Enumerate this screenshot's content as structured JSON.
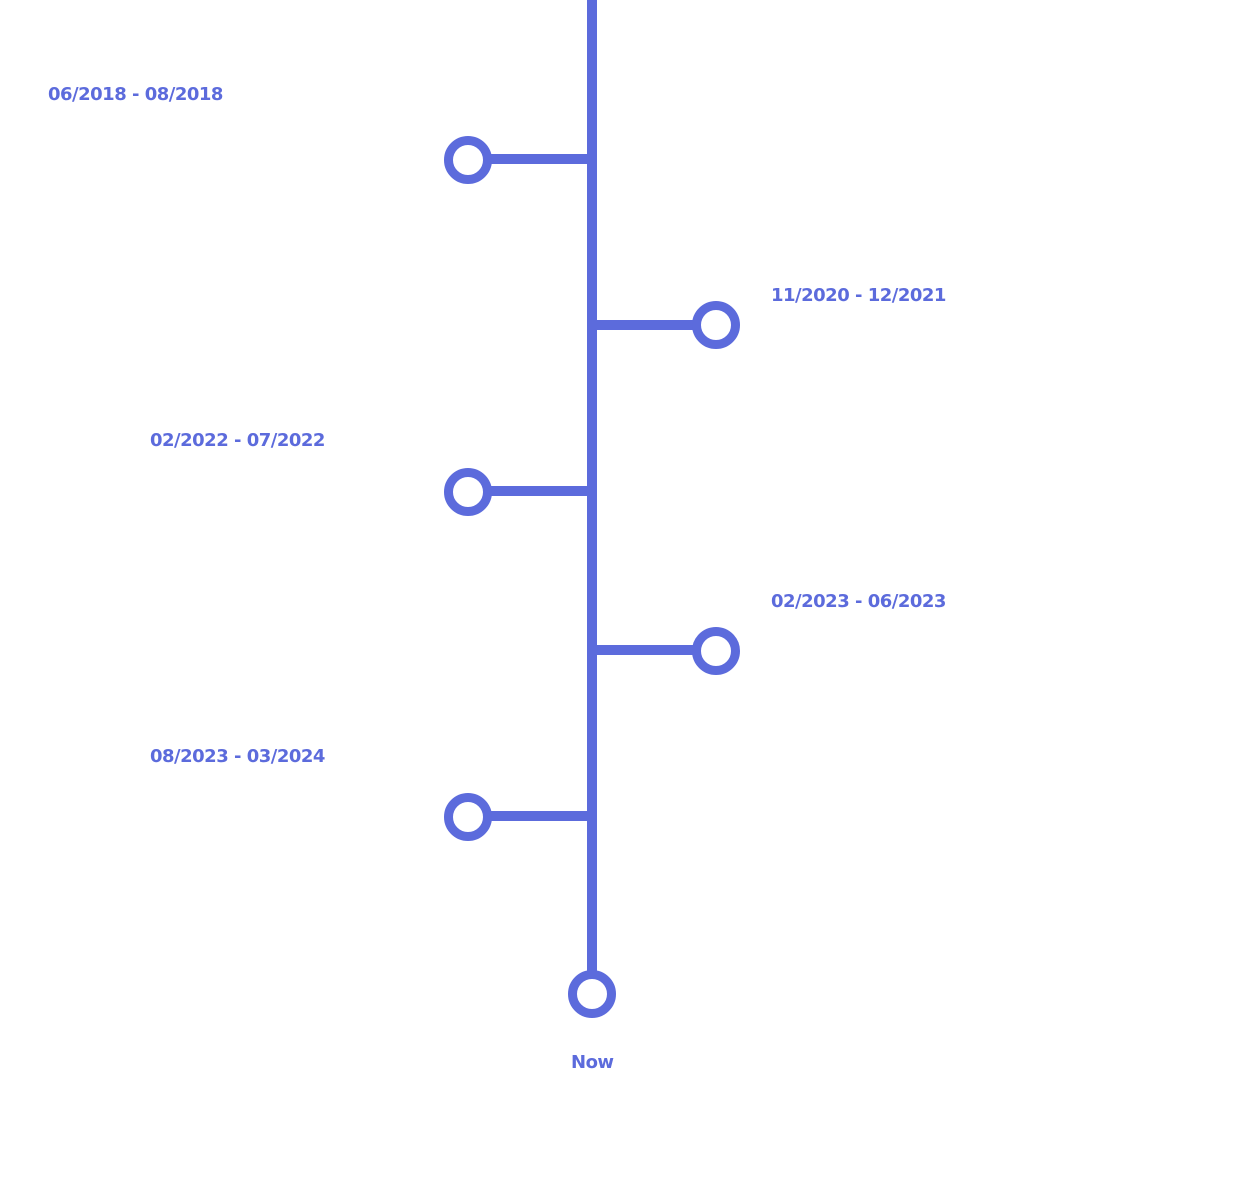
{
  "colors": {
    "accent": "#5C6BDC",
    "background": "#FFFFFF"
  },
  "entries": [
    {
      "label": "06/2018 - 08/2018",
      "side": "left"
    },
    {
      "label": "11/2020 - 12/2021",
      "side": "right"
    },
    {
      "label": "02/2022 - 07/2022",
      "side": "left"
    },
    {
      "label": "02/2023 - 06/2023",
      "side": "right"
    },
    {
      "label": "08/2023 - 03/2024",
      "side": "left"
    }
  ],
  "end": {
    "label": "Now"
  }
}
